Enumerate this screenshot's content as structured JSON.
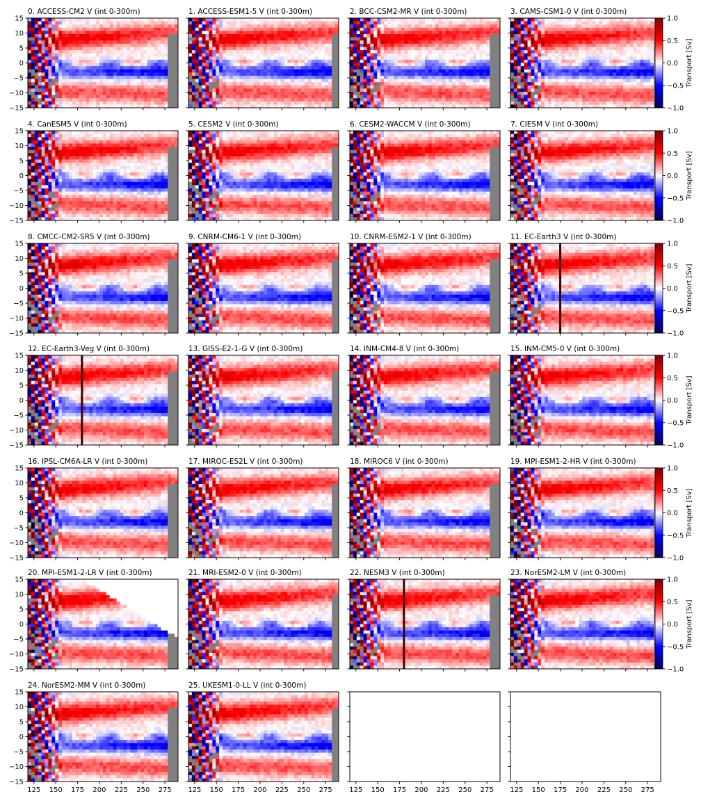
{
  "chart_data": {
    "type": "heatmap",
    "figure": "Grid of 26 model panels (7 rows x 4 columns, last 2 axes empty): meridional volume transport V integrated 0-300m, longitude (deg E) vs latitude (deg N)",
    "xlim": [
      118,
      290
    ],
    "ylim": [
      -15,
      15
    ],
    "xticks": [
      125,
      150,
      175,
      200,
      225,
      250,
      275
    ],
    "yticks": [
      -15,
      -10,
      -5,
      0,
      5,
      10,
      15
    ],
    "colormap": "seismic",
    "land_color": "#808080",
    "colorbar": {
      "label": "Transport [Sv]",
      "range": [
        -1.0,
        1.0
      ],
      "ticks": [
        "1.0",
        "0.5",
        "0.0",
        "−0.5",
        "−1.0"
      ]
    },
    "panels": [
      {
        "title": "0. ACCESS-CM2 V (int 0-300m)"
      },
      {
        "title": "1. ACCESS-ESM1-5 V (int 0-300m)"
      },
      {
        "title": "2. BCC-CSM2-MR V (int 0-300m)"
      },
      {
        "title": "3. CAMS-CSM1-0 V (int 0-300m)"
      },
      {
        "title": "4. CanESM5 V (int 0-300m)"
      },
      {
        "title": "5. CESM2 V (int 0-300m)"
      },
      {
        "title": "6. CESM2-WACCM V (int 0-300m)"
      },
      {
        "title": "7. CIESM V (int 0-300m)"
      },
      {
        "title": "8. CMCC-CM2-SR5 V (int 0-300m)"
      },
      {
        "title": "9. CNRM-CM6-1 V (int 0-300m)"
      },
      {
        "title": "10. CNRM-ESM2-1 V (int 0-300m)"
      },
      {
        "title": "11. EC-Earth3 V (int 0-300m)"
      },
      {
        "title": "12. EC-Earth3-Veg V (int 0-300m)"
      },
      {
        "title": "13. GISS-E2-1-G V (int 0-300m)"
      },
      {
        "title": "14. INM-CM4-8 V (int 0-300m)"
      },
      {
        "title": "15. INM-CM5-0 V (int 0-300m)"
      },
      {
        "title": "16. IPSL-CM6A-LR V (int 0-300m)"
      },
      {
        "title": "17. MIROC-ES2L V (int 0-300m)"
      },
      {
        "title": "18. MIROC6 V (int 0-300m)"
      },
      {
        "title": "19. MPI-ESM1-2-HR V (int 0-300m)"
      },
      {
        "title": "20. MPI-ESM1-2-LR V (int 0-300m)"
      },
      {
        "title": "21. MRI-ESM2-0 V (int 0-300m)"
      },
      {
        "title": "22. NESM3 V (int 0-300m)"
      },
      {
        "title": "23. NorESM2-LM V (int 0-300m)"
      },
      {
        "title": "24. NorESM2-MM V (int 0-300m)"
      },
      {
        "title": "25. UKESM1-0-LL V (int 0-300m)"
      }
    ],
    "empty_axes": 2,
    "features": {
      "north_band": {
        "lat": [
          3,
          14
        ],
        "value": 0.6,
        "note": "red northward transport band, stronger in west"
      },
      "equatorial_band": {
        "lat": [
          -5,
          -1
        ],
        "value": -0.5,
        "note": "blue southward transport south of equator"
      },
      "south_band": {
        "lat": [
          -14,
          -6
        ],
        "value": 0.35,
        "note": "weak red band"
      },
      "western_boundary": {
        "lon": [
          120,
          160
        ],
        "note": "strong alternating red/blue near islands"
      },
      "artifact_lines": {
        "11": 175,
        "12": 180,
        "22": 180
      }
    }
  }
}
